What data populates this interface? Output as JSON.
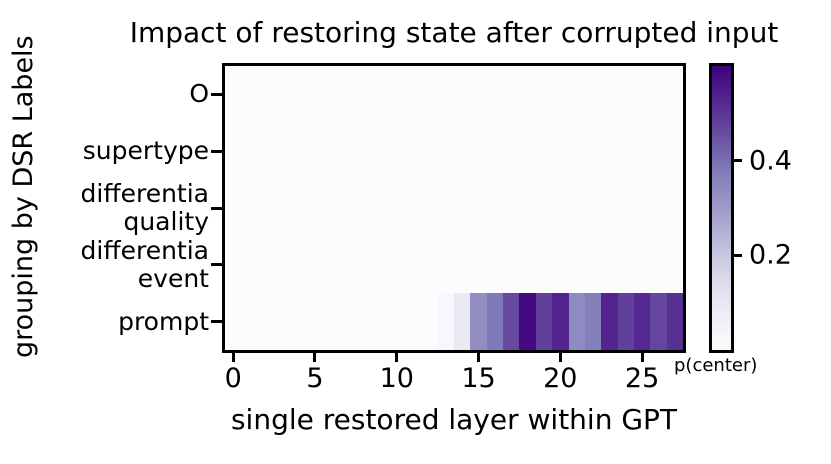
{
  "chart_data": {
    "type": "heatmap",
    "title": "Impact of restoring state after corrupted input",
    "xlabel": "single restored layer within GPT",
    "ylabel": "grouping by DSR Labels",
    "rows": [
      "O",
      "supertype",
      "differentia\nquality",
      "differentia\nevent",
      "prompt"
    ],
    "n_layers": 28,
    "xticks": [
      0,
      5,
      10,
      15,
      20,
      25
    ],
    "colorbar": {
      "label": "p(center)",
      "ticks": [
        0.2,
        0.4
      ],
      "vmin": 0.0,
      "vmax": 0.6,
      "colormap": "Purples",
      "colormap_stops": [
        "#fcfbfd",
        "#efedf5",
        "#dadaeb",
        "#bcbddc",
        "#9e9ac8",
        "#807dba",
        "#6a51a3",
        "#54278f",
        "#3f007d"
      ]
    },
    "values": [
      [
        0,
        0,
        0,
        0,
        0,
        0,
        0,
        0,
        0,
        0,
        0,
        0,
        0,
        0,
        0,
        0,
        0,
        0,
        0,
        0,
        0,
        0,
        0,
        0,
        0,
        0,
        0,
        0
      ],
      [
        0,
        0,
        0,
        0,
        0,
        0,
        0,
        0,
        0,
        0,
        0,
        0,
        0,
        0,
        0,
        0,
        0,
        0,
        0,
        0,
        0,
        0,
        0,
        0,
        0,
        0,
        0,
        0
      ],
      [
        0,
        0,
        0,
        0,
        0,
        0,
        0,
        0,
        0,
        0,
        0,
        0,
        0,
        0,
        0,
        0,
        0,
        0,
        0,
        0,
        0,
        0,
        0,
        0,
        0,
        0,
        0,
        0
      ],
      [
        0,
        0,
        0,
        0,
        0,
        0,
        0,
        0,
        0,
        0,
        0,
        0,
        0,
        0,
        0,
        0,
        0,
        0,
        0,
        0,
        0,
        0,
        0,
        0,
        0,
        0,
        0,
        0
      ],
      [
        0,
        0,
        0,
        0,
        0,
        0,
        0,
        0,
        0,
        0,
        0,
        0,
        0,
        0.02,
        0.09,
        0.33,
        0.38,
        0.46,
        0.58,
        0.48,
        0.53,
        0.34,
        0.37,
        0.53,
        0.48,
        0.52,
        0.47,
        0.51
      ]
    ],
    "axes": {
      "text_color": "#000000",
      "background_color": "#ffffff",
      "min_cell_color": "#fbfafd"
    }
  }
}
